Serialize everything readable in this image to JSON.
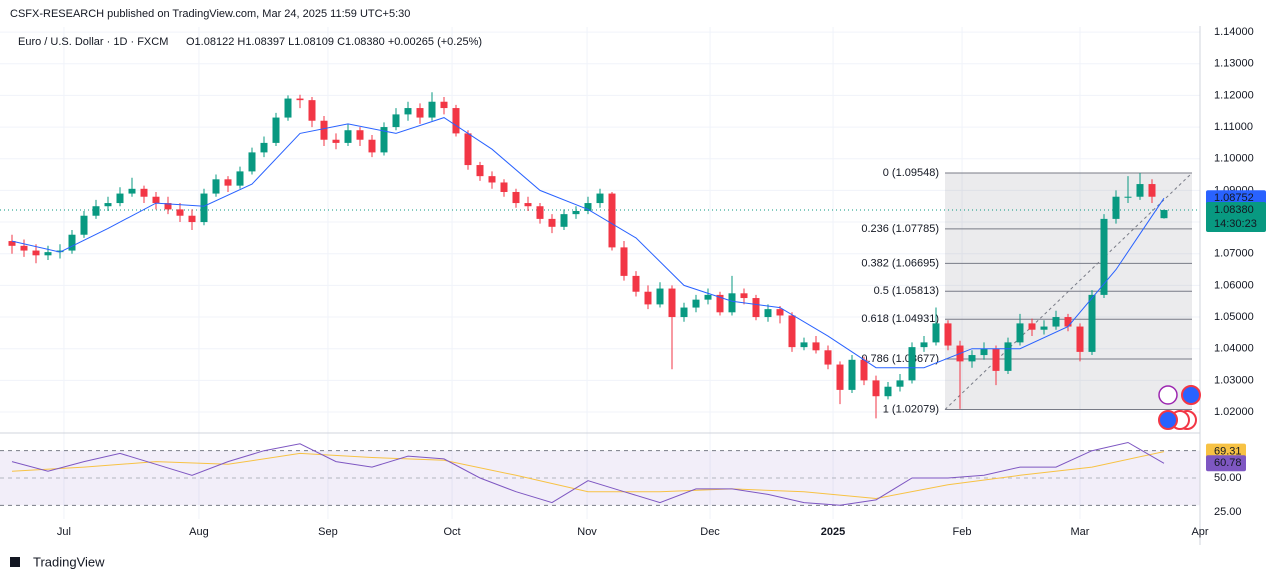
{
  "header": {
    "published": "CSFX-RESEARCH published on TradingView.com, Mar 24, 2025 11:59 UTC+5:30",
    "logo": "TradingView"
  },
  "chart_data": {
    "type": "candlestick",
    "symbol": "Euro / U.S. Dollar · 1D · FXCM",
    "ohlc_legend": "O1.08122 H1.08397 L1.08109 C1.08380 +0.00265 (+0.25%)",
    "up_color": "#089981",
    "down_color": "#f23645",
    "xlim": [
      -1,
      99
    ],
    "xticks": [
      {
        "value": 4.33,
        "label": "Jul"
      },
      {
        "value": 15.58,
        "label": "Aug"
      },
      {
        "value": 26.33,
        "label": "Sep"
      },
      {
        "value": 36.67,
        "label": "Oct"
      },
      {
        "value": 47.92,
        "label": "Nov"
      },
      {
        "value": 58.17,
        "label": "Dec"
      },
      {
        "value": 68.42,
        "label": "2025"
      },
      {
        "value": 79.17,
        "label": "Feb"
      },
      {
        "value": 89,
        "label": "Mar"
      },
      {
        "value": 99,
        "label": "Apr"
      }
    ],
    "ylim": [
      1.0137,
      1.1416
    ],
    "yticks": [
      {
        "value": 1.14,
        "label": "1.14000"
      },
      {
        "value": 1.13,
        "label": "1.13000"
      },
      {
        "value": 1.12,
        "label": "1.12000"
      },
      {
        "value": 1.11,
        "label": "1.11000"
      },
      {
        "value": 1.1,
        "label": "1.10000"
      },
      {
        "value": 1.09,
        "label": "1.09000"
      },
      {
        "value": 1.08,
        "label": "1.08000"
      },
      {
        "value": 1.07,
        "label": "1.07000"
      },
      {
        "value": 1.06,
        "label": "1.06000"
      },
      {
        "value": 1.05,
        "label": "1.05000"
      },
      {
        "value": 1.04,
        "label": "1.04000"
      },
      {
        "value": 1.03,
        "label": "1.03000"
      },
      {
        "value": 1.02,
        "label": "1.02000"
      }
    ],
    "grid": true,
    "ohlc": [
      [
        1.074,
        1.076,
        1.07,
        1.0725
      ],
      [
        1.0725,
        1.0745,
        1.069,
        1.071
      ],
      [
        1.071,
        1.073,
        1.067,
        1.0695
      ],
      [
        1.0695,
        1.0725,
        1.068,
        1.0705
      ],
      [
        1.0705,
        1.073,
        1.0685,
        1.071
      ],
      [
        1.071,
        1.0775,
        1.07,
        1.076
      ],
      [
        1.076,
        1.0835,
        1.075,
        1.082
      ],
      [
        1.082,
        1.087,
        1.081,
        1.085
      ],
      [
        1.085,
        1.088,
        1.0835,
        1.086
      ],
      [
        1.086,
        1.091,
        1.085,
        1.089
      ],
      [
        1.089,
        1.094,
        1.088,
        1.0905
      ],
      [
        1.0905,
        1.0915,
        1.086,
        1.088
      ],
      [
        1.088,
        1.0895,
        1.084,
        1.086
      ],
      [
        1.086,
        1.088,
        1.0825,
        1.084
      ],
      [
        1.084,
        1.086,
        1.08,
        1.082
      ],
      [
        1.082,
        1.084,
        1.0775,
        1.08
      ],
      [
        1.08,
        1.0905,
        1.079,
        1.089
      ],
      [
        1.089,
        1.095,
        1.088,
        1.0935
      ],
      [
        1.0935,
        1.0945,
        1.0895,
        1.0915
      ],
      [
        1.0915,
        1.0975,
        1.0905,
        1.096
      ],
      [
        1.096,
        1.1035,
        1.095,
        1.102
      ],
      [
        1.102,
        1.107,
        1.1005,
        1.105
      ],
      [
        1.105,
        1.1145,
        1.104,
        1.113
      ],
      [
        1.113,
        1.12,
        1.112,
        1.119
      ],
      [
        1.119,
        1.1202,
        1.116,
        1.1185
      ],
      [
        1.1185,
        1.1195,
        1.11,
        1.112
      ],
      [
        1.112,
        1.1135,
        1.104,
        1.106
      ],
      [
        1.106,
        1.108,
        1.103,
        1.105
      ],
      [
        1.105,
        1.111,
        1.104,
        1.109
      ],
      [
        1.109,
        1.11,
        1.104,
        1.106
      ],
      [
        1.106,
        1.1075,
        1.1005,
        1.102
      ],
      [
        1.102,
        1.1115,
        1.101,
        1.11
      ],
      [
        1.11,
        1.116,
        1.109,
        1.114
      ],
      [
        1.114,
        1.118,
        1.112,
        1.116
      ],
      [
        1.116,
        1.1175,
        1.111,
        1.113
      ],
      [
        1.113,
        1.121,
        1.112,
        1.118
      ],
      [
        1.118,
        1.1195,
        1.114,
        1.116
      ],
      [
        1.116,
        1.117,
        1.107,
        1.108
      ],
      [
        1.108,
        1.109,
        1.0965,
        1.098
      ],
      [
        1.098,
        1.099,
        1.093,
        1.0945
      ],
      [
        1.0945,
        1.096,
        1.0905,
        1.0925
      ],
      [
        1.0925,
        1.0935,
        1.088,
        1.0895
      ],
      [
        1.0895,
        1.0905,
        1.0845,
        1.086
      ],
      [
        1.086,
        1.088,
        1.0835,
        1.085
      ],
      [
        1.085,
        1.086,
        1.0795,
        1.081
      ],
      [
        1.081,
        1.0825,
        1.0765,
        1.0785
      ],
      [
        1.0785,
        1.084,
        1.0775,
        1.0825
      ],
      [
        1.0825,
        1.085,
        1.081,
        1.0835
      ],
      [
        1.0835,
        1.088,
        1.0825,
        1.086
      ],
      [
        1.086,
        1.0905,
        1.0845,
        1.089
      ],
      [
        1.089,
        1.0895,
        1.071,
        1.072
      ],
      [
        1.072,
        1.074,
        1.0615,
        1.063
      ],
      [
        1.063,
        1.0645,
        1.0565,
        1.058
      ],
      [
        1.058,
        1.06,
        1.0525,
        1.054
      ],
      [
        1.054,
        1.061,
        1.053,
        1.059
      ],
      [
        1.059,
        1.06,
        1.0335,
        1.05
      ],
      [
        1.05,
        1.0545,
        1.0485,
        1.053
      ],
      [
        1.053,
        1.057,
        1.0515,
        1.0555
      ],
      [
        1.0555,
        1.059,
        1.054,
        1.057
      ],
      [
        1.057,
        1.058,
        1.0505,
        1.0515
      ],
      [
        1.0515,
        1.063,
        1.0505,
        1.0575
      ],
      [
        1.0575,
        1.059,
        1.054,
        1.056
      ],
      [
        1.056,
        1.057,
        1.049,
        1.05
      ],
      [
        1.05,
        1.054,
        1.0485,
        1.0525
      ],
      [
        1.0525,
        1.0535,
        1.048,
        1.0505
      ],
      [
        1.0505,
        1.0515,
        1.039,
        1.0405
      ],
      [
        1.0405,
        1.0435,
        1.0395,
        1.042
      ],
      [
        1.042,
        1.044,
        1.0385,
        1.0395
      ],
      [
        1.0395,
        1.041,
        1.0335,
        1.035
      ],
      [
        1.035,
        1.036,
        1.0225,
        1.027
      ],
      [
        1.027,
        1.038,
        1.026,
        1.0365
      ],
      [
        1.0365,
        1.0375,
        1.0285,
        1.03
      ],
      [
        1.03,
        1.0315,
        1.018,
        1.025
      ],
      [
        1.025,
        1.0295,
        1.024,
        1.028
      ],
      [
        1.028,
        1.032,
        1.0265,
        1.03
      ],
      [
        1.03,
        1.042,
        1.029,
        1.0405
      ],
      [
        1.0405,
        1.044,
        1.039,
        1.042
      ],
      [
        1.042,
        1.053,
        1.041,
        1.048
      ],
      [
        1.048,
        1.049,
        1.0395,
        1.041
      ],
      [
        1.041,
        1.0425,
        1.021,
        1.036
      ],
      [
        1.036,
        1.0395,
        1.034,
        1.038
      ],
      [
        1.038,
        1.042,
        1.0365,
        1.04
      ],
      [
        1.04,
        1.041,
        1.0285,
        1.033
      ],
      [
        1.033,
        1.0435,
        1.032,
        1.042
      ],
      [
        1.042,
        1.051,
        1.041,
        1.048
      ],
      [
        1.048,
        1.0495,
        1.044,
        1.046
      ],
      [
        1.046,
        1.049,
        1.0445,
        1.047
      ],
      [
        1.047,
        1.052,
        1.046,
        1.05
      ],
      [
        1.05,
        1.051,
        1.0455,
        1.047
      ],
      [
        1.047,
        1.048,
        1.036,
        1.039
      ],
      [
        1.039,
        1.0585,
        1.038,
        1.057
      ],
      [
        1.057,
        1.0825,
        1.056,
        1.081
      ],
      [
        1.081,
        1.09,
        1.0795,
        1.088
      ],
      [
        1.088,
        1.0945,
        1.086,
        1.088
      ],
      [
        1.088,
        1.0955,
        1.087,
        1.092
      ],
      [
        1.092,
        1.0935,
        1.086,
        1.088
      ],
      [
        1.08122,
        1.08397,
        1.08109,
        1.0838
      ]
    ],
    "ma": {
      "color": "#2962ff",
      "x": [
        0,
        4,
        8,
        12,
        16,
        20,
        24,
        28,
        32,
        36,
        40,
        44,
        48,
        52,
        56,
        60,
        64,
        68,
        72,
        76,
        80,
        84,
        88,
        92,
        96
      ],
      "values": [
        1.074,
        1.0705,
        1.078,
        1.086,
        1.085,
        1.092,
        1.108,
        1.111,
        1.108,
        1.113,
        1.103,
        1.09,
        1.084,
        1.075,
        1.06,
        1.055,
        1.053,
        1.044,
        1.034,
        1.034,
        1.04,
        1.04,
        1.047,
        1.065,
        1.08752
      ]
    },
    "ma_last": {
      "value": 1.08752,
      "label": "1.08752"
    },
    "last_price": {
      "value": 1.0838,
      "label": "1.08380",
      "countdown": "14:30:23"
    },
    "fib": [
      {
        "value": 1.09548,
        "label": "0 (1.09548)"
      },
      {
        "value": 1.07785,
        "label": "0.236 (1.07785)"
      },
      {
        "value": 1.06695,
        "label": "0.382 (1.06695)"
      },
      {
        "value": 1.05813,
        "label": "0.5 (1.05813)"
      },
      {
        "value": 1.04931,
        "label": "0.618 (1.04931)"
      },
      {
        "value": 1.03677,
        "label": "0.786 (1.03677)"
      },
      {
        "value": 1.02079,
        "label": "1 (1.02079)"
      }
    ],
    "rsi": {
      "ylim": [
        20,
        80
      ],
      "yticks": [
        {
          "value": 50,
          "label": "50.00"
        },
        {
          "value": 25,
          "label": "25.00"
        }
      ],
      "bands": [
        70,
        30
      ],
      "line": {
        "color": "#7e57c2",
        "x": [
          0,
          3,
          6,
          9,
          12,
          15,
          18,
          21,
          24,
          27,
          30,
          33,
          36,
          39,
          42,
          45,
          48,
          51,
          54,
          57,
          60,
          63,
          66,
          69,
          72,
          75,
          78,
          81,
          84,
          87,
          90,
          93,
          96
        ],
        "values": [
          62,
          55,
          62,
          68,
          60,
          52,
          62,
          70,
          75,
          62,
          58,
          66,
          64,
          50,
          40,
          32,
          48,
          40,
          32,
          42,
          42,
          38,
          32,
          30,
          34,
          50,
          50,
          52,
          58,
          58,
          70,
          76,
          60.78
        ],
        "last_label": "60.78"
      },
      "signal": {
        "color": "#f7c244",
        "x": [
          0,
          6,
          12,
          18,
          24,
          30,
          36,
          42,
          48,
          54,
          60,
          66,
          72,
          78,
          84,
          90,
          96
        ],
        "values": [
          55,
          58,
          62,
          60,
          68,
          65,
          63,
          52,
          40,
          40,
          42,
          40,
          35,
          45,
          52,
          58,
          69.31
        ],
        "last_label": "69.31"
      }
    }
  }
}
